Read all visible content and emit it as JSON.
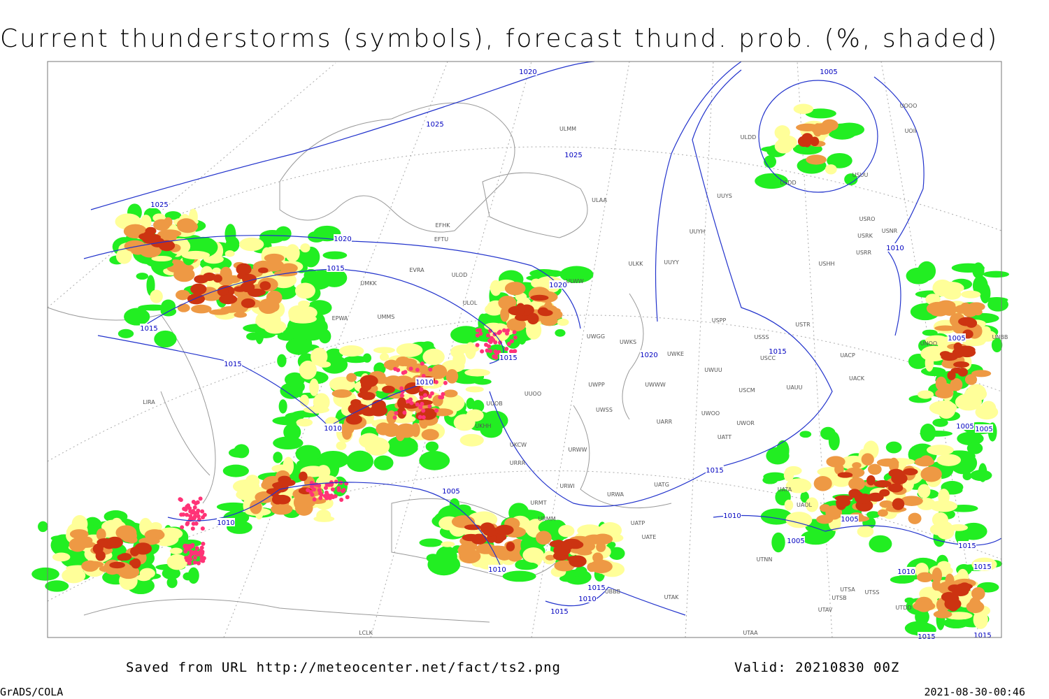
{
  "title": "Current thunderstorms (symbols), forecast thund. prob. (%, shaded)",
  "footer": {
    "saved": "Saved from URL http://meteocenter.net/fact/ts2.png",
    "valid": "Valid: 20210830 00Z",
    "software": "GrADS/COLA",
    "timestamp": "2021-08-30-00:46"
  },
  "isobar_labels": [
    "1020",
    "1025",
    "1025",
    "1025",
    "1020",
    "1015",
    "1015",
    "1015",
    "1020",
    "1015",
    "1010",
    "1010",
    "1005",
    "1010",
    "1010",
    "1015",
    "1010",
    "1015",
    "1005",
    "1015",
    "1020",
    "1015",
    "1010",
    "1005",
    "1005",
    "1005",
    "1010",
    "1005",
    "1005",
    "1015",
    "1015",
    "1010",
    "1015",
    "1015"
  ],
  "stations": [
    "ULMM",
    "ULAA",
    "ULDD",
    "UUYS",
    "UUYH",
    "ULKK",
    "UUYY",
    "ULWW",
    "ULOL",
    "EFHK",
    "EFTU",
    "EVRA",
    "ULOD",
    "UMKK",
    "EPWA",
    "UMMS",
    "USRR",
    "USNR",
    "USRK",
    "USRO",
    "USHH",
    "USUU",
    "USDD",
    "UOOO",
    "UOII",
    "USPP",
    "USTR",
    "USSS",
    "USCC",
    "UACP",
    "UACK",
    "UWKE",
    "UWKS",
    "UWGG",
    "UWPP",
    "UWWW",
    "UWUU",
    "USCM",
    "UAUU",
    "UWSS",
    "UARR",
    "UWOO",
    "UWOR",
    "UATT",
    "URWW",
    "UKHH",
    "UUOB",
    "UUOO",
    "UKCW",
    "URRR",
    "URWI",
    "UATG",
    "URWA",
    "UATA",
    "UAOL",
    "UTNN",
    "UTSA",
    "UTSS",
    "UTSB",
    "UTAV",
    "UTDD",
    "UATE",
    "UATP",
    "URMM",
    "URMT",
    "LIRA",
    "LCLK",
    "UTAA",
    "UTAK",
    "UBBB",
    "UNBB",
    "UNOO"
  ]
}
